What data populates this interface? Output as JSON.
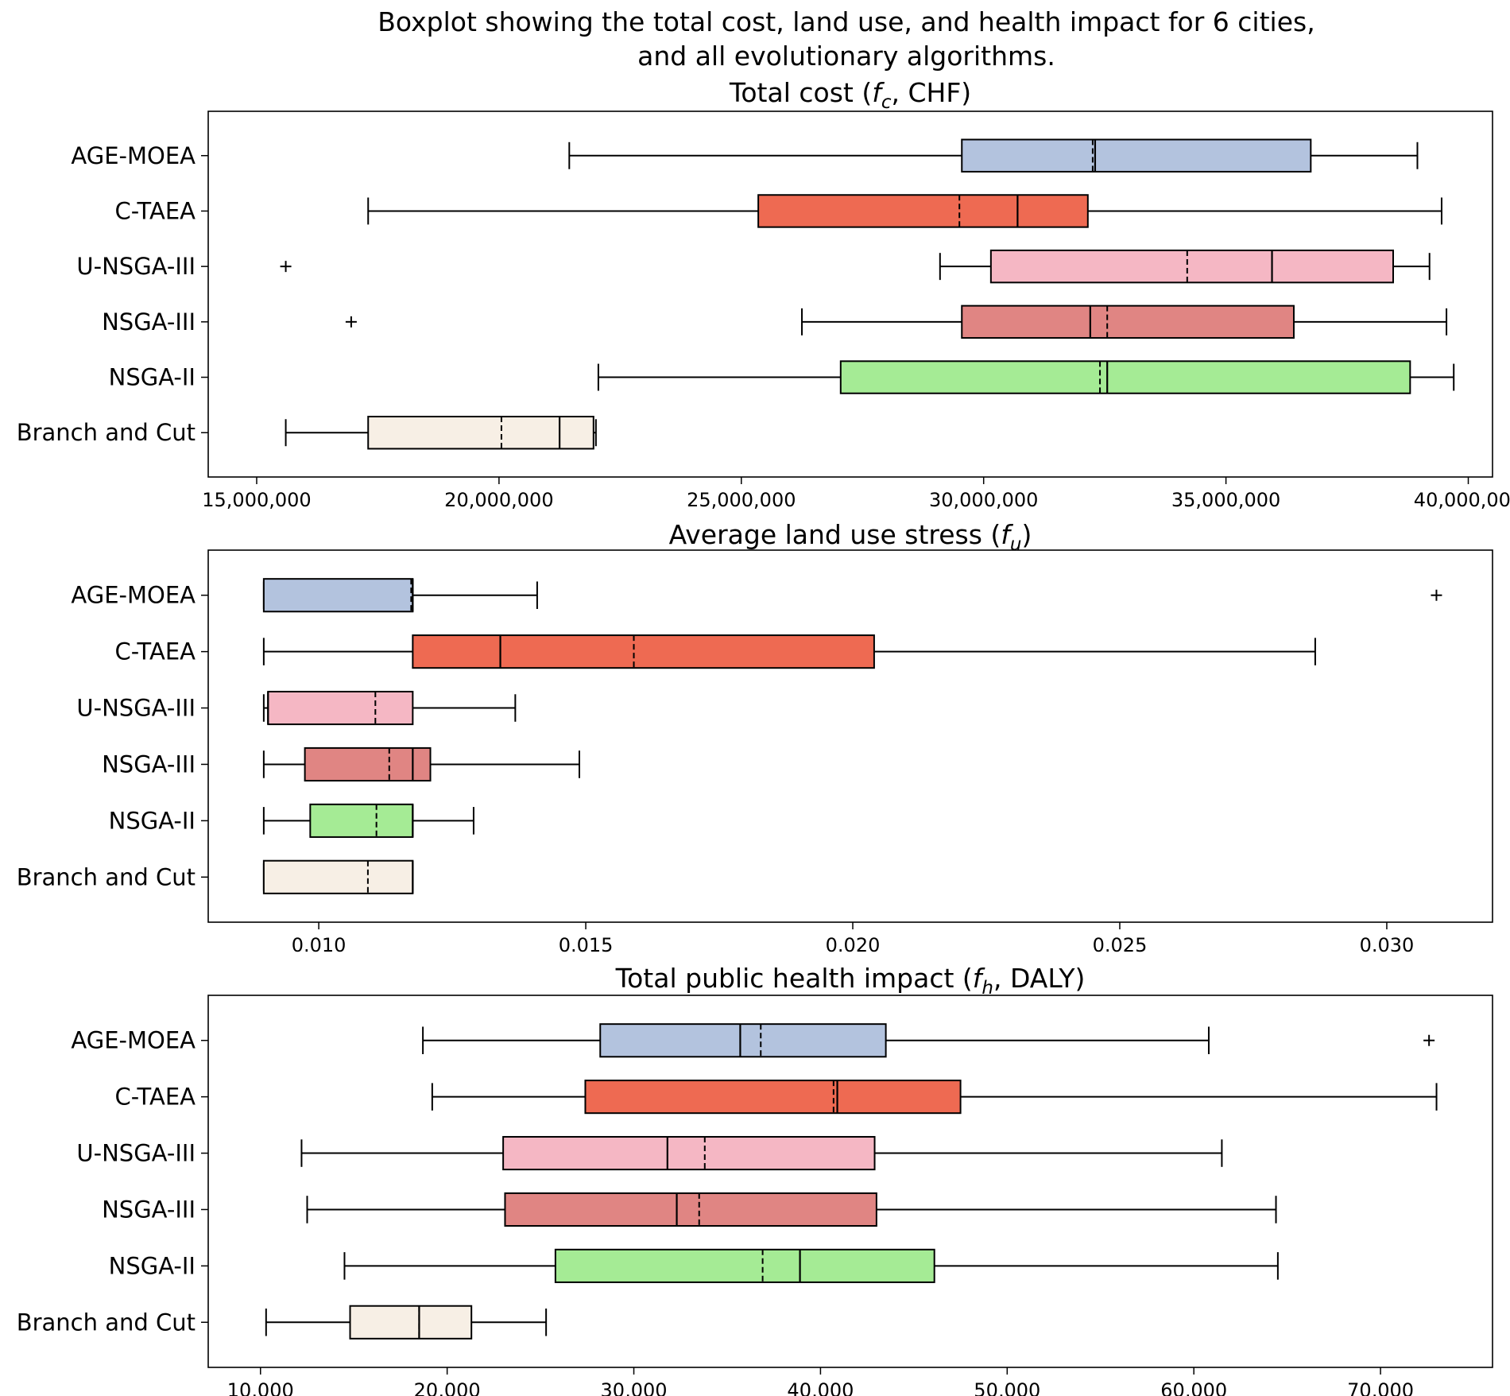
{
  "figure": {
    "title_lines": [
      "Boxplot showing the total cost, land use, and health impact for 6 cities,",
      "and all evolutionary algorithms."
    ]
  },
  "colors": {
    "AGE-MOEA": "#b3c3de",
    "C-TAEA": "#ee6a52",
    "U-NSGA-III": "#f5b7c4",
    "NSGA-III": "#e08583",
    "NSGA-II": "#a5eb95",
    "Branch and Cut": "#f7efe5"
  },
  "chart_data": [
    {
      "type": "box",
      "orientation": "horizontal",
      "title": "Total cost (f_c, CHF)",
      "title_parts": [
        "Total cost (",
        "f",
        "c",
        ", CHF)"
      ],
      "xlim": [
        14000000,
        40500000
      ],
      "xticks": [
        15000000,
        20000000,
        25000000,
        30000000,
        35000000,
        40000000
      ],
      "xtick_labels": [
        "15,000,000",
        "20,000,000",
        "25,000,000",
        "30,000,000",
        "35,000,000",
        "40,000,000"
      ],
      "categories": [
        "AGE-MOEA",
        "C-TAEA",
        "U-NSGA-III",
        "NSGA-III",
        "NSGA-II",
        "Branch and Cut"
      ],
      "series": [
        {
          "name": "AGE-MOEA",
          "whisker_low": 21450000,
          "q1": 29550000,
          "median": 32300000,
          "mean": 32250000,
          "q3": 36750000,
          "whisker_high": 38950000,
          "fliers": []
        },
        {
          "name": "C-TAEA",
          "whisker_low": 17300000,
          "q1": 25350000,
          "median": 30700000,
          "mean": 29500000,
          "q3": 32150000,
          "whisker_high": 39450000,
          "fliers": []
        },
        {
          "name": "U-NSGA-III",
          "whisker_low": 29100000,
          "q1": 30150000,
          "median": 35950000,
          "mean": 34200000,
          "q3": 38450000,
          "whisker_high": 39200000,
          "fliers": [
            15600000
          ]
        },
        {
          "name": "NSGA-III",
          "whisker_low": 26250000,
          "q1": 29550000,
          "median": 32200000,
          "mean": 32550000,
          "q3": 36400000,
          "whisker_high": 39550000,
          "fliers": [
            16950000
          ]
        },
        {
          "name": "NSGA-II",
          "whisker_low": 22050000,
          "q1": 27050000,
          "median": 32550000,
          "mean": 32400000,
          "q3": 38800000,
          "whisker_high": 39700000,
          "fliers": []
        },
        {
          "name": "Branch and Cut",
          "whisker_low": 15600000,
          "q1": 17300000,
          "median": 21250000,
          "mean": 20050000,
          "q3": 21950000,
          "whisker_high": 22000000,
          "fliers": []
        }
      ]
    },
    {
      "type": "box",
      "orientation": "horizontal",
      "title": "Average land use stress (f_u)",
      "title_parts": [
        "Average land use stress (",
        "f",
        "u",
        ")"
      ],
      "xlim": [
        0.00793,
        0.03198
      ],
      "xticks": [
        0.01,
        0.015,
        0.02,
        0.025,
        0.03
      ],
      "xtick_labels": [
        "0.010",
        "0.015",
        "0.020",
        "0.025",
        "0.030"
      ],
      "categories": [
        "AGE-MOEA",
        "C-TAEA",
        "U-NSGA-III",
        "NSGA-III",
        "NSGA-II",
        "Branch and Cut"
      ],
      "series": [
        {
          "name": "AGE-MOEA",
          "whisker_low": 0.00897,
          "q1": 0.00897,
          "median": 0.01176,
          "mean": 0.01173,
          "q3": 0.01176,
          "whisker_high": 0.01409,
          "fliers": [
            0.03093
          ]
        },
        {
          "name": "C-TAEA",
          "whisker_low": 0.00897,
          "q1": 0.01176,
          "median": 0.0134,
          "mean": 0.0159,
          "q3": 0.0204,
          "whisker_high": 0.02866,
          "fliers": []
        },
        {
          "name": "U-NSGA-III",
          "whisker_low": 0.00897,
          "q1": 0.00905,
          "median": 0.00905,
          "mean": 0.01106,
          "q3": 0.01176,
          "whisker_high": 0.01368,
          "fliers": []
        },
        {
          "name": "NSGA-III",
          "whisker_low": 0.00897,
          "q1": 0.00974,
          "median": 0.01176,
          "mean": 0.01132,
          "q3": 0.01209,
          "whisker_high": 0.01488,
          "fliers": []
        },
        {
          "name": "NSGA-II",
          "whisker_low": 0.00897,
          "q1": 0.00984,
          "median": 0.01176,
          "mean": 0.01108,
          "q3": 0.01176,
          "whisker_high": 0.0129,
          "fliers": []
        },
        {
          "name": "Branch and Cut",
          "whisker_low": 0.00897,
          "q1": 0.00897,
          "median": 0.01176,
          "mean": 0.01092,
          "q3": 0.01176,
          "whisker_high": 0.01176,
          "fliers": []
        }
      ]
    },
    {
      "type": "box",
      "orientation": "horizontal",
      "title": "Total public health impact (f_h, DALY)",
      "title_parts": [
        "Total public health impact (",
        "f",
        "h",
        ", DALY)"
      ],
      "xlim": [
        7200,
        76000
      ],
      "xticks": [
        10000,
        20000,
        30000,
        40000,
        50000,
        60000,
        70000
      ],
      "xtick_labels": [
        "10,000",
        "20,000",
        "30,000",
        "40,000",
        "50,000",
        "60,000",
        "70,000"
      ],
      "categories": [
        "AGE-MOEA",
        "C-TAEA",
        "U-NSGA-III",
        "NSGA-III",
        "NSGA-II",
        "Branch and Cut"
      ],
      "series": [
        {
          "name": "AGE-MOEA",
          "whisker_low": 18700,
          "q1": 28200,
          "median": 35700,
          "mean": 36800,
          "q3": 43500,
          "whisker_high": 60800,
          "fliers": [
            72600
          ]
        },
        {
          "name": "C-TAEA",
          "whisker_low": 19200,
          "q1": 27400,
          "median": 40900,
          "mean": 40700,
          "q3": 47500,
          "whisker_high": 73000,
          "fliers": []
        },
        {
          "name": "U-NSGA-III",
          "whisker_low": 12200,
          "q1": 23000,
          "median": 31800,
          "mean": 33800,
          "q3": 42900,
          "whisker_high": 61500,
          "fliers": []
        },
        {
          "name": "NSGA-III",
          "whisker_low": 12500,
          "q1": 23100,
          "median": 32300,
          "mean": 33500,
          "q3": 43000,
          "whisker_high": 64400,
          "fliers": []
        },
        {
          "name": "NSGA-II",
          "whisker_low": 14500,
          "q1": 25800,
          "median": 38900,
          "mean": 36900,
          "q3": 46100,
          "whisker_high": 64500,
          "fliers": []
        },
        {
          "name": "Branch and Cut",
          "whisker_low": 10300,
          "q1": 14800,
          "median": 18500,
          "mean": 18500,
          "q3": 21300,
          "whisker_high": 25300,
          "fliers": []
        }
      ]
    }
  ]
}
